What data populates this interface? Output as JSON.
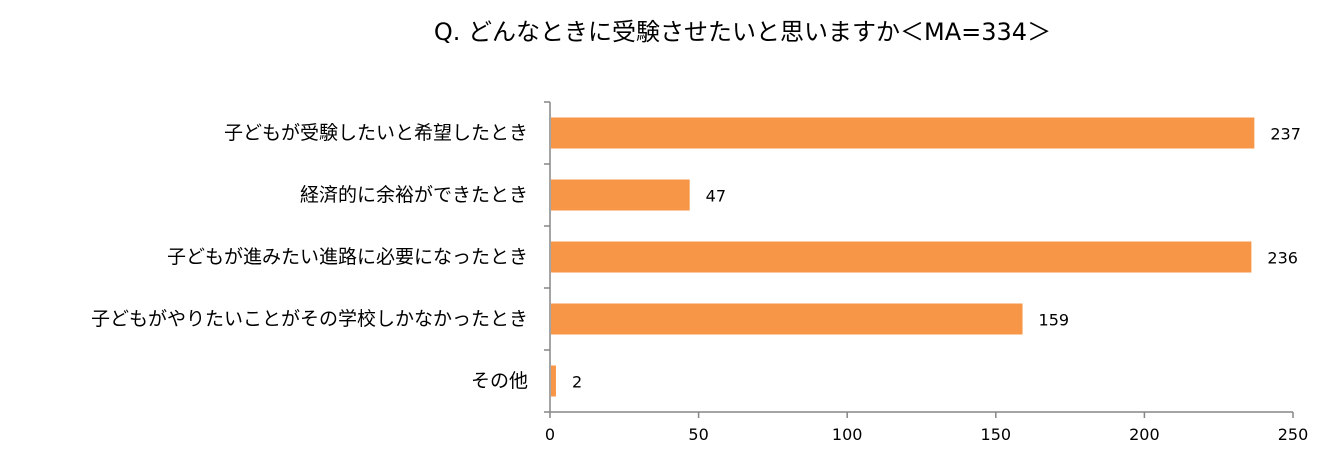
{
  "chart_data": {
    "type": "bar",
    "orientation": "horizontal",
    "title": "Q. どんなときに受験させたいと思いますか＜MA=334＞",
    "categories": [
      "子どもが受験したいと希望したとき",
      "経済的に余裕ができたとき",
      "子どもが進みたい進路に必要になったとき",
      "子どもがやりたいことがその学校しかなかったとき",
      "その他"
    ],
    "values": [
      237,
      47,
      236,
      159,
      2
    ],
    "value_labels": [
      "237",
      "47",
      "236",
      "159",
      "2"
    ],
    "xlim": [
      0,
      250
    ],
    "xticks": [
      0,
      50,
      100,
      150,
      200,
      250
    ],
    "xtick_labels": [
      "0",
      "50",
      "100",
      "150",
      "200",
      "250"
    ],
    "bar_color": "#F79646",
    "grid": false,
    "legend": "none"
  }
}
